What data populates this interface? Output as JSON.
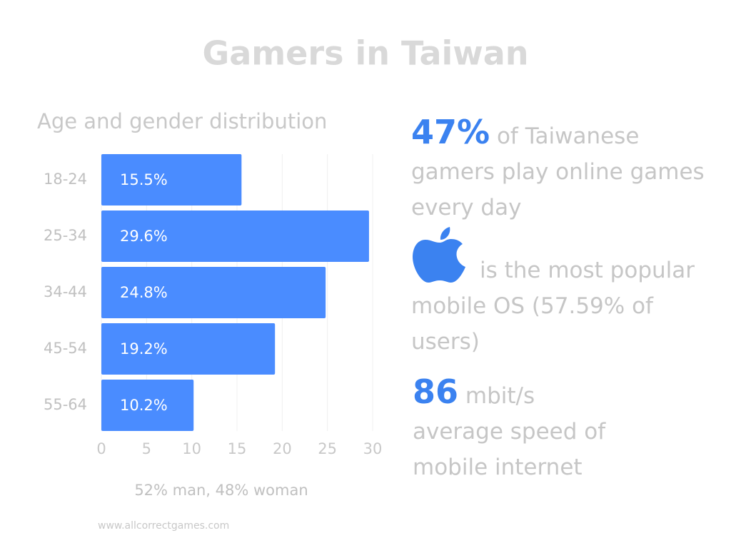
{
  "title": "Gamers in Taiwan",
  "chart_data": {
    "type": "bar",
    "orientation": "horizontal",
    "subtitle": "Age and gender distribution",
    "categories": [
      "18-24",
      "25-34",
      "34-44",
      "45-54",
      "55-64"
    ],
    "values": [
      15.5,
      29.6,
      24.8,
      19.2,
      10.2
    ],
    "value_labels": [
      "15.5%",
      "29.6%",
      "24.8%",
      "19.2%",
      "10.2%"
    ],
    "color": "#4a8cff",
    "xlim": [
      0,
      30
    ],
    "xticks": [
      0,
      5,
      10,
      15,
      20,
      25,
      30
    ],
    "grid": true,
    "note": "52% man, 48% woman"
  },
  "stats": [
    {
      "highlight": "47%",
      "text": "of Taiwanese gamers play online games every day"
    },
    {
      "text": "is the most popular mobile OS (57.59% of users)"
    },
    {
      "highlight": "86",
      "unit": "mbit/s",
      "text": "average speed of mobile internet"
    }
  ],
  "source": "www.allcorrectgames.com"
}
